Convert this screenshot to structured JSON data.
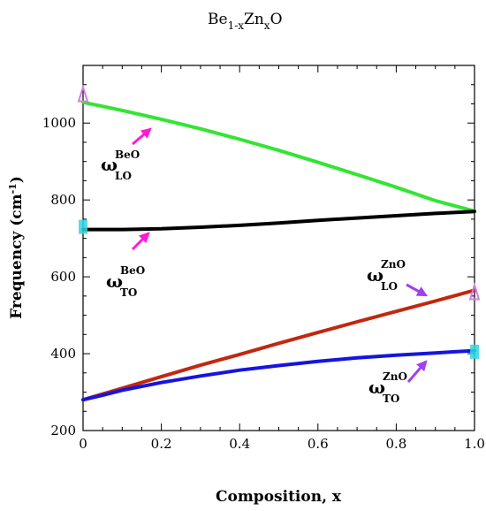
{
  "chart_data": {
    "type": "line",
    "title": {
      "main": "Be",
      "sub1": "1-x",
      "mid": "Zn",
      "sub2": "x",
      "end": "O"
    },
    "xlabel": "Composition, x",
    "ylabel": {
      "main": "Frequency (cm",
      "sup": "-1",
      "close": ")"
    },
    "xlim": [
      0,
      1
    ],
    "ylim": [
      200,
      1150
    ],
    "x_ticks": [
      0,
      0.2,
      0.4,
      0.6,
      0.8,
      1
    ],
    "x_tick_labels": [
      "0",
      "0.2",
      "0.4",
      "0.6",
      "0.8",
      "1.0"
    ],
    "y_ticks": [
      200,
      400,
      600,
      800,
      1000
    ],
    "y_tick_labels": [
      "200",
      "400",
      "600",
      "800",
      "1000"
    ],
    "grid": false,
    "series": [
      {
        "key": "beo-lo",
        "color": "#33e533",
        "x": [
          0,
          0.1,
          0.2,
          0.3,
          0.4,
          0.5,
          0.6,
          0.7,
          0.8,
          0.9,
          1.0
        ],
        "y": [
          1054,
          1033,
          1010,
          985,
          958,
          929,
          898,
          866,
          833,
          798,
          771
        ]
      },
      {
        "key": "beo-to",
        "color": "#000000",
        "x": [
          0,
          0.1,
          0.2,
          0.3,
          0.4,
          0.5,
          0.6,
          0.7,
          0.8,
          0.9,
          1.0
        ],
        "y": [
          723,
          723,
          725,
          729,
          734,
          740,
          747,
          753,
          759,
          765,
          770
        ]
      },
      {
        "key": "zno-lo",
        "color": "#c02810",
        "x": [
          0,
          0.1,
          0.2,
          0.3,
          0.4,
          0.5,
          0.6,
          0.7,
          0.8,
          0.9,
          1.0
        ],
        "y": [
          280,
          310,
          340,
          370,
          398,
          427,
          455,
          483,
          510,
          537,
          565
        ]
      },
      {
        "key": "zno-to",
        "color": "#1515e0",
        "x": [
          0,
          0.05,
          0.1,
          0.2,
          0.3,
          0.4,
          0.5,
          0.6,
          0.7,
          0.8,
          0.9,
          1.0
        ],
        "y": [
          280,
          292,
          305,
          325,
          342,
          357,
          369,
          380,
          389,
          396,
          402,
          408
        ]
      }
    ],
    "markers": [
      {
        "x": 0,
        "y": 1075,
        "color": "#d080e0",
        "shape": "triangle"
      },
      {
        "x": 0,
        "y": 730,
        "color": "#33d6e0",
        "shape": "square"
      },
      {
        "x": 1,
        "y": 560,
        "color": "#d080e0",
        "shape": "triangle"
      },
      {
        "x": 1,
        "y": 405,
        "color": "#33d6e0",
        "shape": "square"
      }
    ],
    "annotations": [
      {
        "key": "beo-lo",
        "omega": "ω",
        "sup": "BeO",
        "sub": "LO",
        "arrow_color": "#ff1ad9"
      },
      {
        "key": "beo-to",
        "omega": "ω",
        "sup": "BeO",
        "sub": "TO",
        "arrow_color": "#ff1ad9"
      },
      {
        "key": "zno-lo",
        "omega": "ω",
        "sup": "ZnO",
        "sub": "LO",
        "arrow_color": "#a040f0"
      },
      {
        "key": "zno-to",
        "omega": "ω",
        "sup": "ZnO",
        "sub": "TO",
        "arrow_color": "#a040f0"
      }
    ]
  }
}
